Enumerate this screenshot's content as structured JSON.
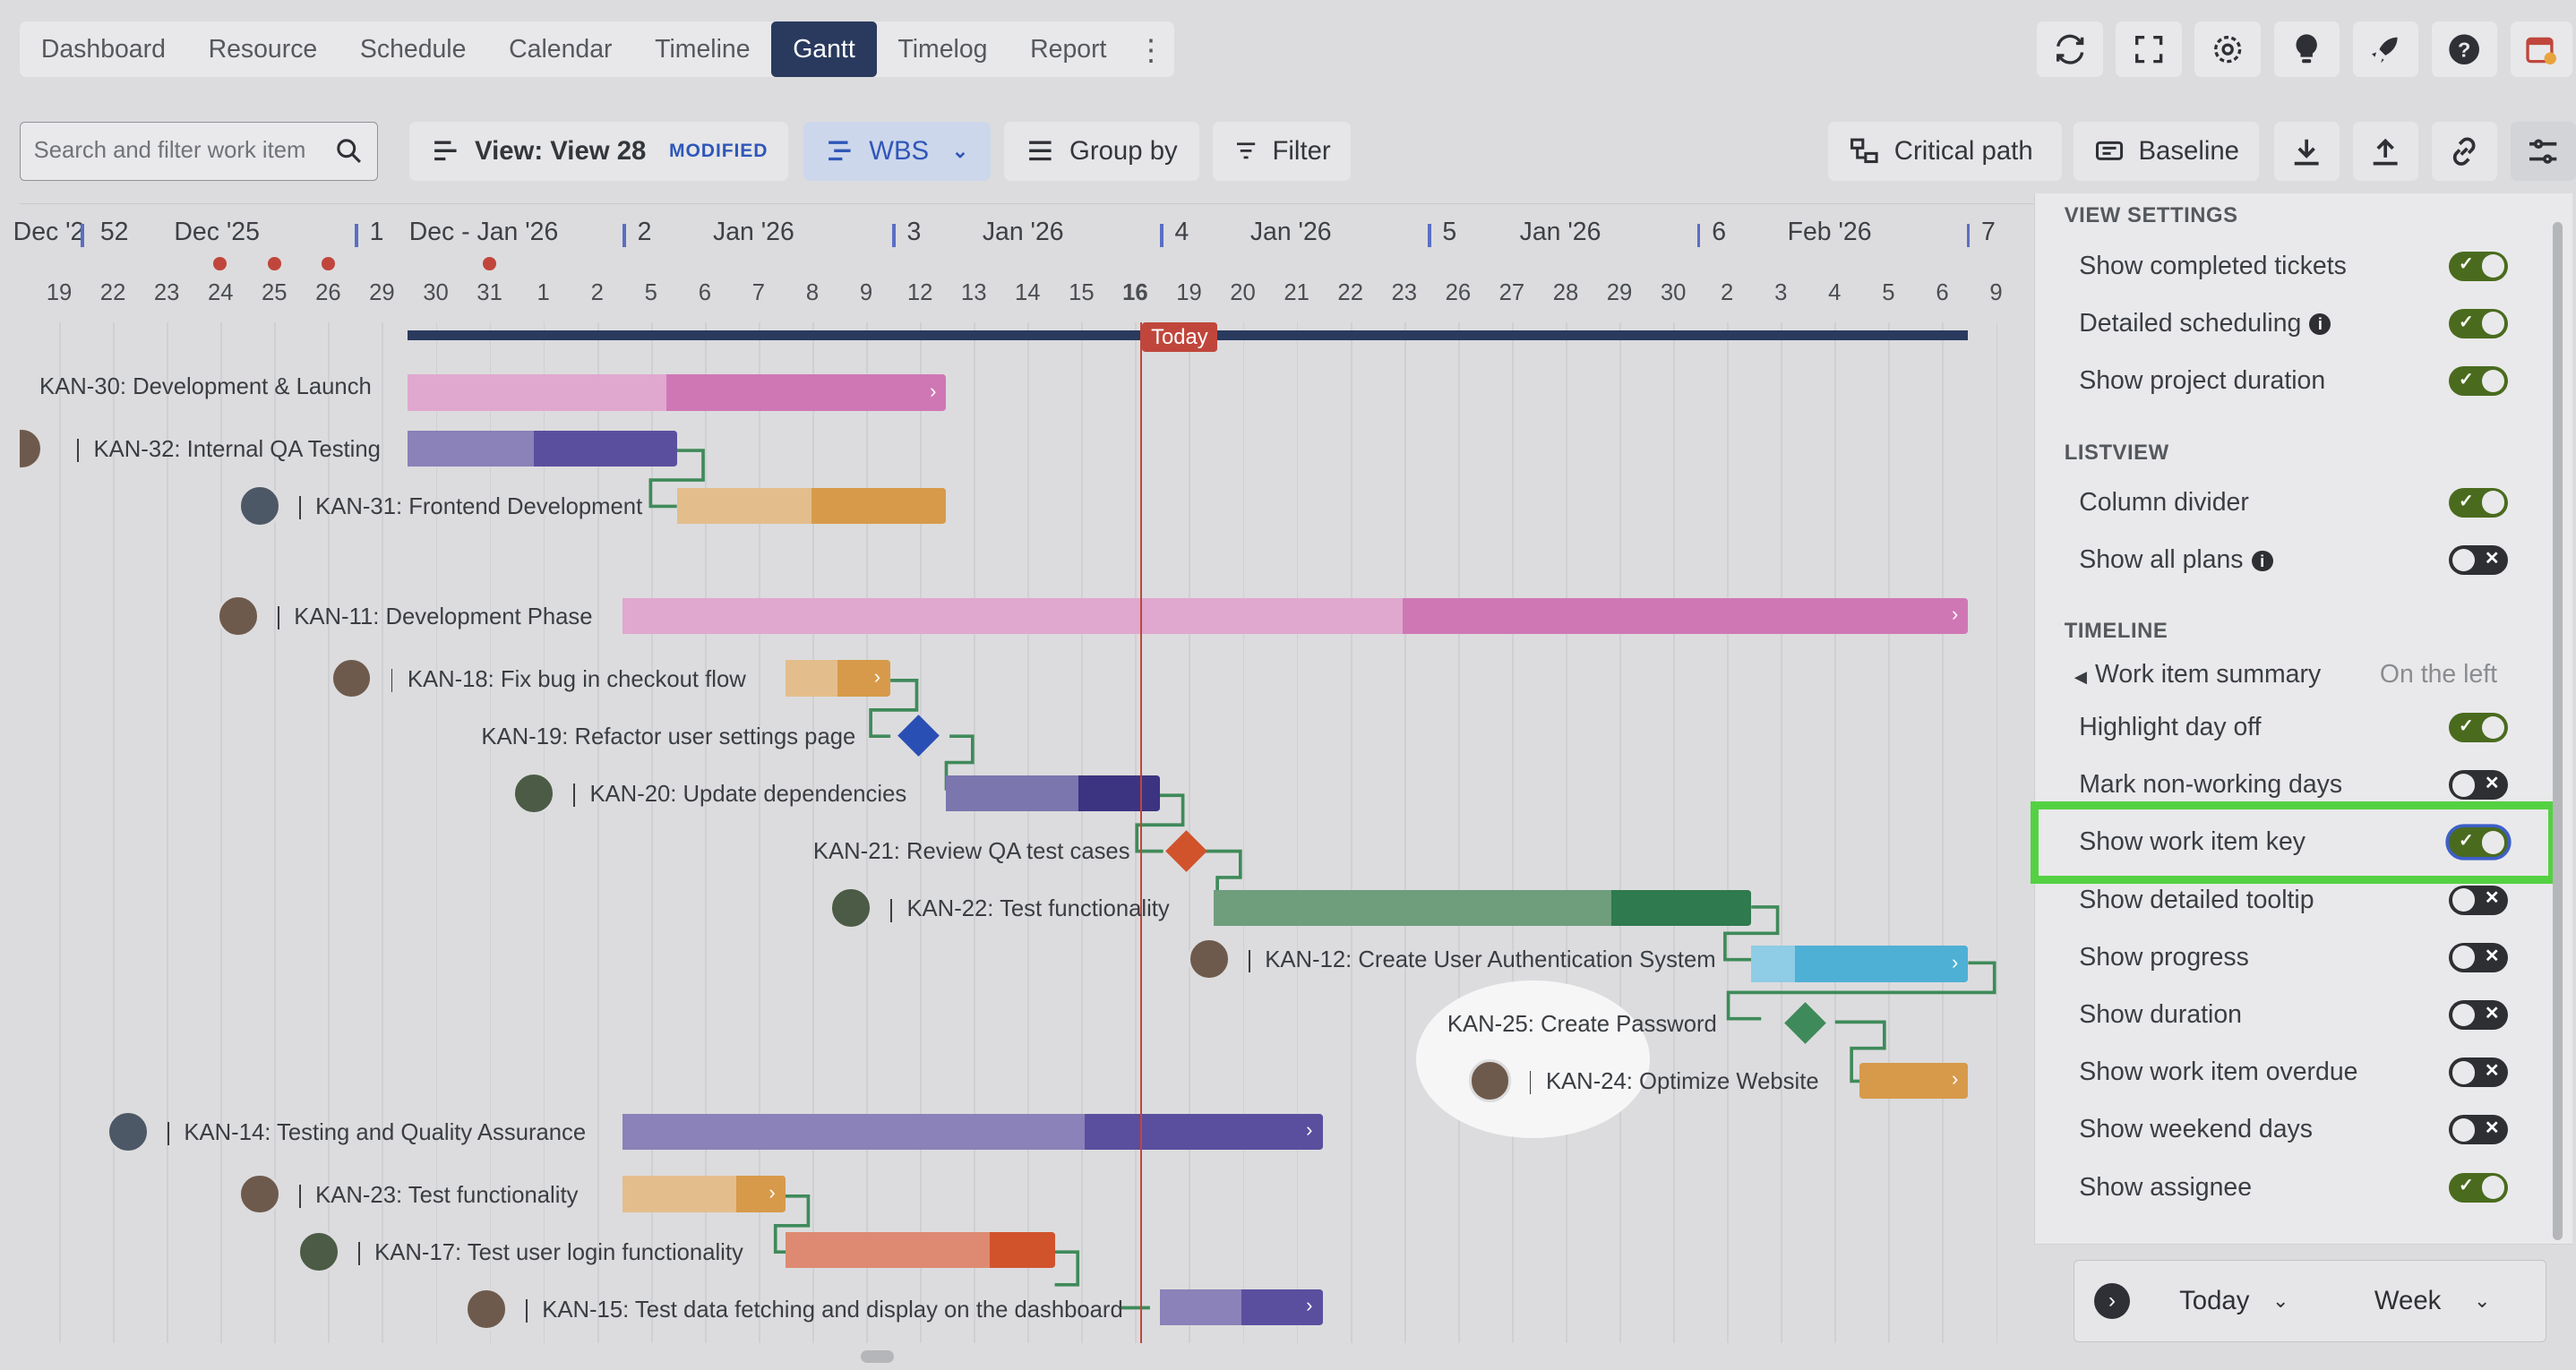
{
  "nav": {
    "tabs": [
      "Dashboard",
      "Resource",
      "Schedule",
      "Calendar",
      "Timeline",
      "Gantt",
      "Timelog",
      "Report"
    ],
    "active_tab": "Gantt",
    "more_icon": "more-vertical-icon"
  },
  "top_icons": [
    "refresh-icon",
    "fullscreen-icon",
    "gear-icon",
    "lightbulb-icon",
    "rocket-icon",
    "help-icon",
    "calendar-app-icon"
  ],
  "toolbar": {
    "search_placeholder": "Search and filter work item",
    "view_label": "View: View 28",
    "view_badge": "MODIFIED",
    "wbs_label": "WBS",
    "group_by_label": "Group by",
    "filter_label": "Filter",
    "critical_path_label": "Critical path",
    "baseline_label": "Baseline"
  },
  "timeline": {
    "weeks": [
      {
        "num": "52",
        "label": "Dec '2"
      },
      {
        "num": "",
        "label": "Dec '25"
      },
      {
        "num": "1",
        "label": "Dec - Jan '26"
      },
      {
        "num": "2",
        "label": "Jan '26"
      },
      {
        "num": "3",
        "label": "Jan '26"
      },
      {
        "num": "4",
        "label": "Jan '26"
      },
      {
        "num": "5",
        "label": "Jan '26"
      },
      {
        "num": "6",
        "label": "Feb '26"
      },
      {
        "num": "7",
        "label": ""
      }
    ],
    "days": [
      "19",
      "22",
      "23",
      "24",
      "25",
      "26",
      "29",
      "30",
      "31",
      "1",
      "2",
      "5",
      "6",
      "7",
      "8",
      "9",
      "12",
      "13",
      "14",
      "15",
      "16",
      "19",
      "20",
      "21",
      "22",
      "23",
      "26",
      "27",
      "28",
      "29",
      "30",
      "2",
      "3",
      "4",
      "5",
      "6",
      "9"
    ],
    "today_label": "Today"
  },
  "tasks": [
    {
      "key": "KAN-30",
      "title": "Development & Launch"
    },
    {
      "key": "KAN-32",
      "title": "Internal QA Testing"
    },
    {
      "key": "KAN-31",
      "title": "Frontend Development"
    },
    {
      "key": "KAN-11",
      "title": "Development Phase"
    },
    {
      "key": "KAN-18",
      "title": "Fix bug in checkout flow"
    },
    {
      "key": "KAN-19",
      "title": "Refactor user settings page"
    },
    {
      "key": "KAN-20",
      "title": "Update dependencies"
    },
    {
      "key": "KAN-21",
      "title": "Review QA test cases"
    },
    {
      "key": "KAN-22",
      "title": "Test functionality"
    },
    {
      "key": "KAN-12",
      "title": "Create User Authentication System"
    },
    {
      "key": "KAN-25",
      "title": "Create Password"
    },
    {
      "key": "KAN-24",
      "title": "Optimize Website"
    },
    {
      "key": "KAN-14",
      "title": "Testing and Quality Assurance"
    },
    {
      "key": "KAN-23",
      "title": "Test functionality"
    },
    {
      "key": "KAN-17",
      "title": "Test user login functionality"
    },
    {
      "key": "KAN-15",
      "title": "Test data fetching and display on the dashboard"
    }
  ],
  "task_labels": [
    "KAN-30: Development & Launch",
    "KAN-32: Internal QA Testing",
    "KAN-31: Frontend Development",
    "KAN-11: Development Phase",
    "KAN-18: Fix bug in checkout flow",
    "KAN-19: Refactor user settings page",
    "KAN-20: Update dependencies",
    "KAN-21: Review QA test cases",
    "KAN-22: Test functionality",
    "KAN-12: Create User Authentication System",
    "KAN-25: Create Password",
    "KAN-24: Optimize Website",
    "KAN-14: Testing and Quality Assurance",
    "KAN-23: Test functionality",
    "KAN-17: Test user login functionality",
    "KAN-15: Test data fetching and display on the dashboard"
  ],
  "settings": {
    "view_settings_heading": "VIEW SETTINGS",
    "listview_heading": "LISTVIEW",
    "timeline_heading": "TIMELINE",
    "items": [
      {
        "label": "Show completed tickets",
        "on": true
      },
      {
        "label": "Detailed scheduling",
        "on": true,
        "info": true
      },
      {
        "label": "Show project duration",
        "on": true
      },
      {
        "label": "Column divider",
        "on": true
      },
      {
        "label": "Show all plans",
        "on": false,
        "info": true
      },
      {
        "label": "Highlight day off",
        "on": true
      },
      {
        "label": "Mark non-working days",
        "on": false
      },
      {
        "label": "Show work item key",
        "on": true
      },
      {
        "label": "Show detailed tooltip",
        "on": false
      },
      {
        "label": "Show progress",
        "on": false
      },
      {
        "label": "Show duration",
        "on": false
      },
      {
        "label": "Show work item overdue",
        "on": false
      },
      {
        "label": "Show weekend days",
        "on": false
      },
      {
        "label": "Show assignee",
        "on": true
      }
    ],
    "summary_label": "Work item summary",
    "summary_value": "On the left"
  },
  "bottom": {
    "today_label": "Today",
    "scale_label": "Week"
  },
  "colors": {
    "nav_active": "#2a3a5e",
    "today_line": "#c0463c",
    "highlight": "#54d142",
    "toggle_on": "#4a6b1e",
    "toggle_off": "#2e2f33",
    "dependency": "#3f8a5a"
  }
}
